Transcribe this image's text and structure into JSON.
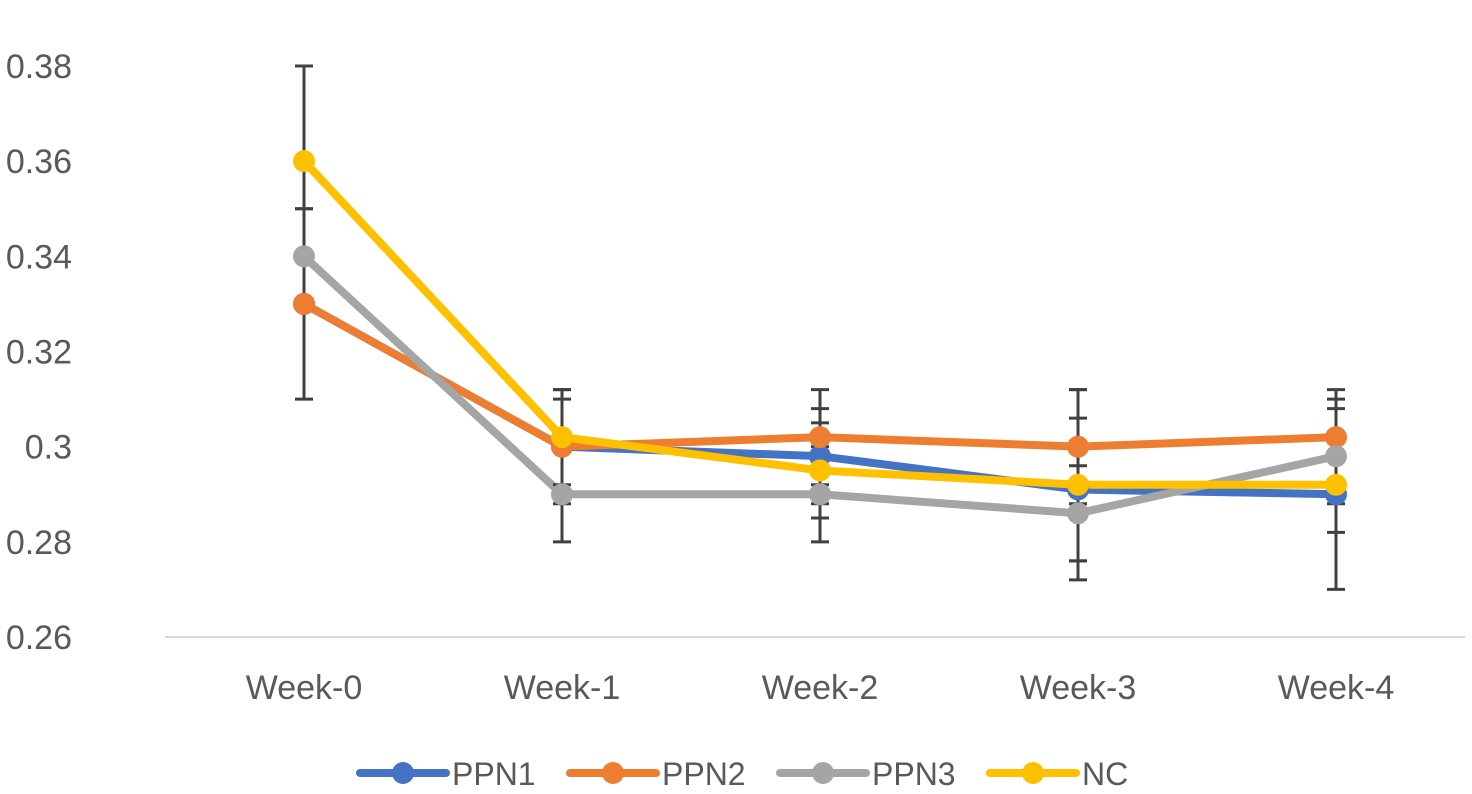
{
  "chart_data": {
    "type": "line",
    "title": "",
    "xlabel": "",
    "ylabel": "",
    "ylim": [
      0.26,
      0.38
    ],
    "yticks": [
      "0.38",
      "0.36",
      "0.34",
      "0.32",
      "0.3",
      "0.28",
      "0.26"
    ],
    "ytick_values": [
      0.38,
      0.36,
      0.34,
      0.32,
      0.3,
      0.28,
      0.26
    ],
    "categories": [
      "Week-0",
      "Week-1",
      "Week-2",
      "Week-3",
      "Week-4"
    ],
    "grid": false,
    "legend_position": "bottom",
    "error_bar_color": "#404040",
    "axis_color": "#d9d9d9",
    "series": [
      {
        "name": "PPN1",
        "color": "#4472c4",
        "values": [
          0.33,
          0.3,
          0.298,
          0.291,
          0.29
        ],
        "errors": [
          0.0,
          0.01,
          0.01,
          0.015,
          0.02
        ]
      },
      {
        "name": "PPN2",
        "color": "#ed7d31",
        "values": [
          0.33,
          0.3,
          0.302,
          0.3,
          0.302
        ],
        "errors": [
          0.02,
          0.012,
          0.01,
          0.012,
          0.01
        ]
      },
      {
        "name": "PPN3",
        "color": "#a5a5a5",
        "values": [
          0.34,
          0.29,
          0.29,
          0.286,
          0.298
        ],
        "errors": [
          0.01,
          0.01,
          0.01,
          0.01,
          0.01
        ]
      },
      {
        "name": "NC",
        "color": "#ffc000",
        "values": [
          0.36,
          0.302,
          0.295,
          0.292,
          0.292
        ],
        "errors": [
          0.02,
          0.01,
          0.01,
          0.02,
          0.01
        ]
      }
    ]
  }
}
